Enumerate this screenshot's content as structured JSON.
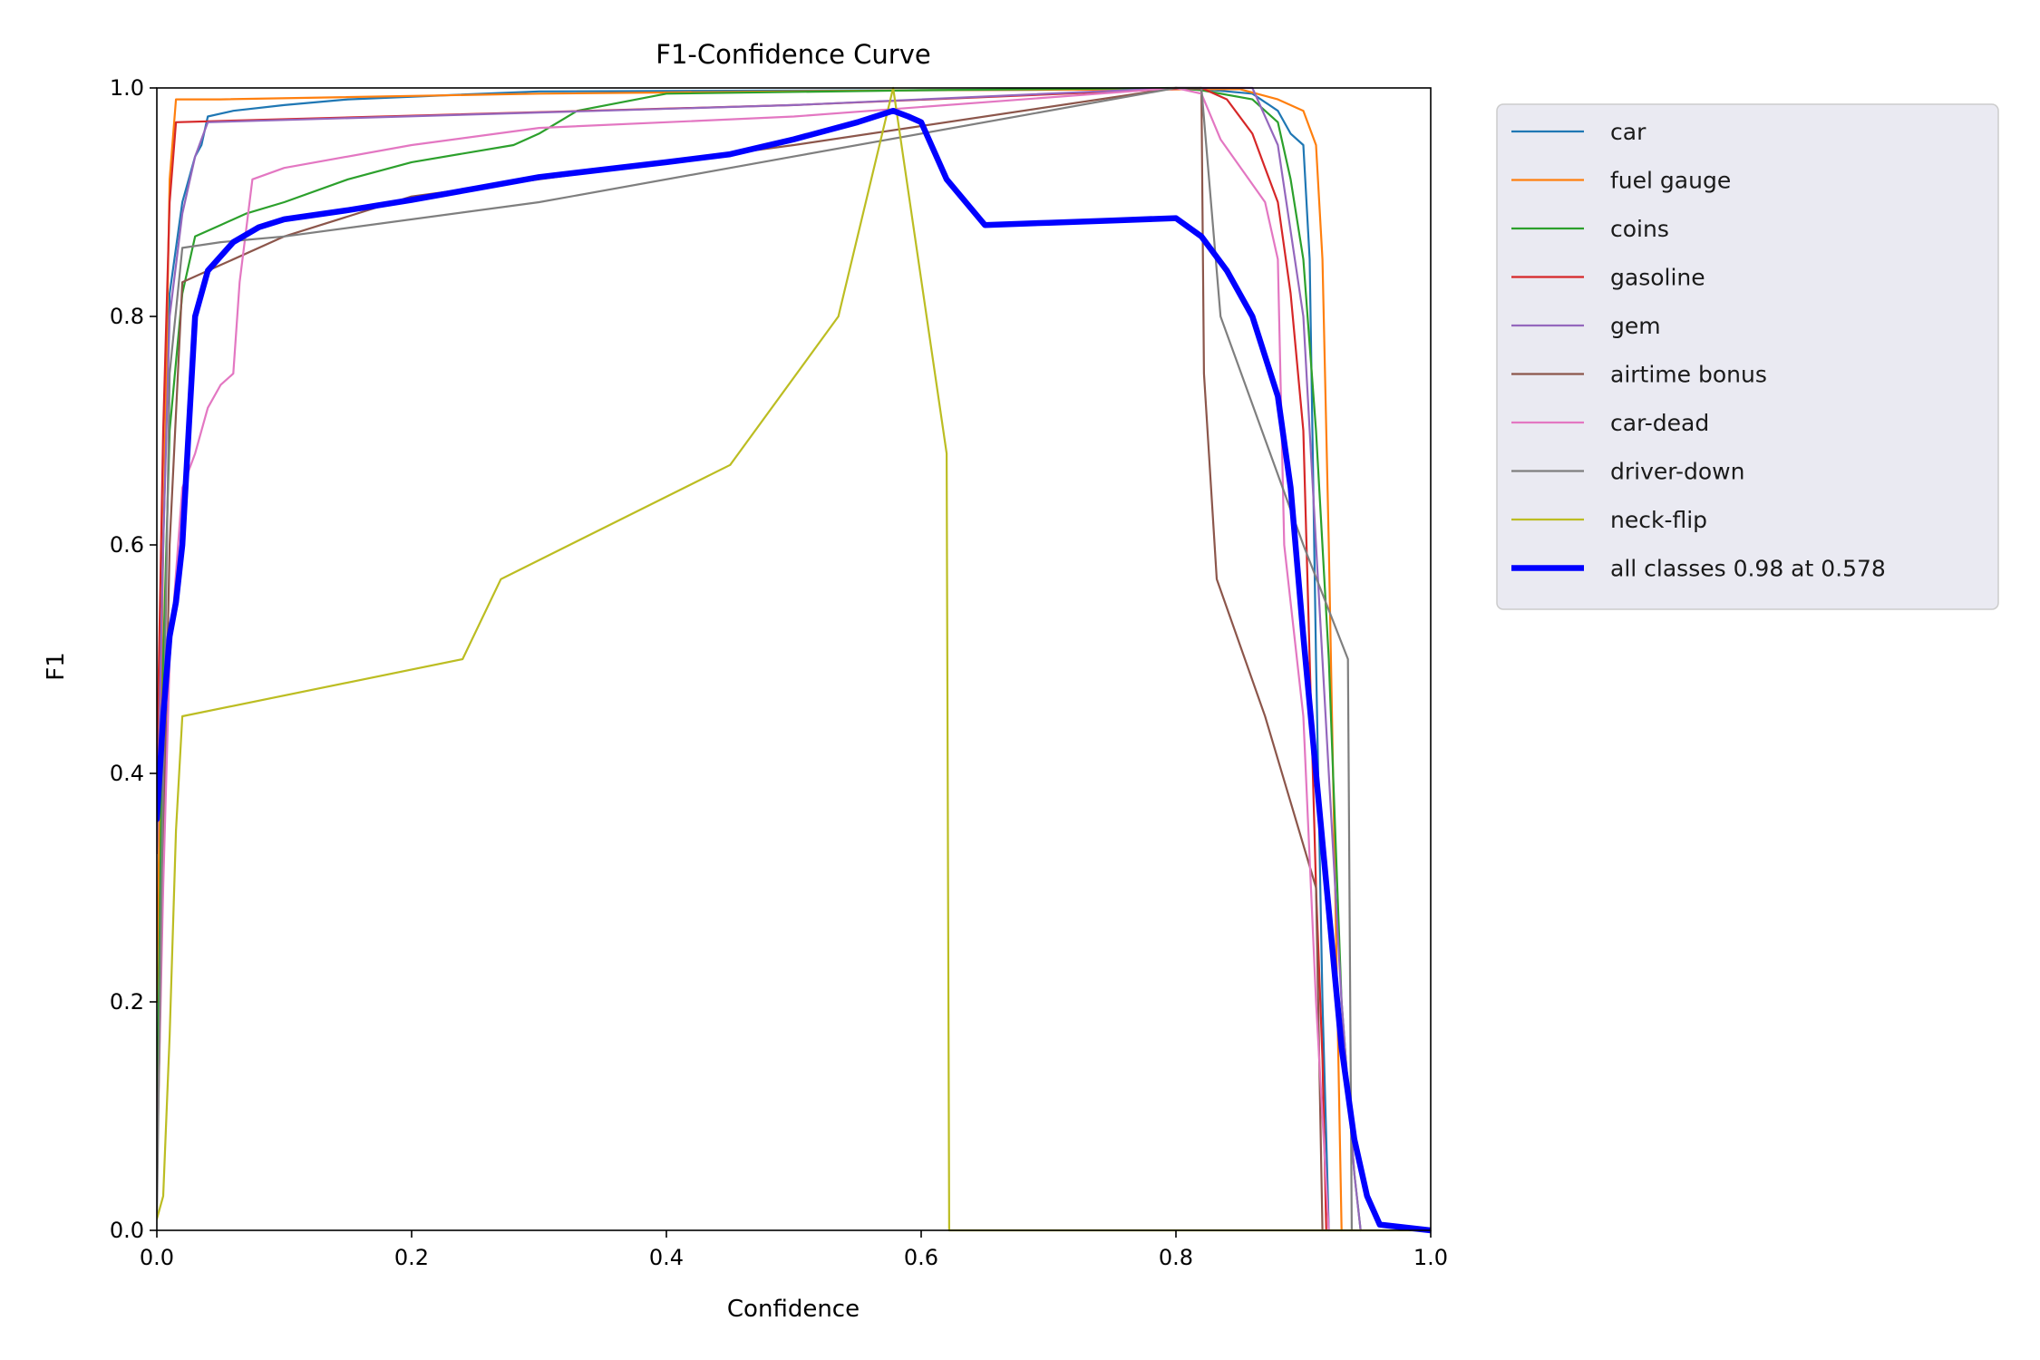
{
  "chart_data": {
    "type": "line",
    "title": "F1-Confidence Curve",
    "xlabel": "Confidence",
    "ylabel": "F1",
    "xlim": [
      0,
      1
    ],
    "ylim": [
      0,
      1
    ],
    "xticks": [
      "0.0",
      "0.2",
      "0.4",
      "0.6",
      "0.8",
      "1.0"
    ],
    "yticks": [
      "0.0",
      "0.2",
      "0.4",
      "0.6",
      "0.8",
      "1.0"
    ],
    "grid": false,
    "legend_position": "outside-right-top",
    "series": [
      {
        "name": "car",
        "color": "#1f77b4",
        "bold": false,
        "points": [
          [
            0,
            0.33
          ],
          [
            0.005,
            0.6
          ],
          [
            0.01,
            0.82
          ],
          [
            0.02,
            0.9
          ],
          [
            0.03,
            0.94
          ],
          [
            0.035,
            0.95
          ],
          [
            0.04,
            0.975
          ],
          [
            0.06,
            0.98
          ],
          [
            0.1,
            0.985
          ],
          [
            0.15,
            0.99
          ],
          [
            0.3,
            0.997
          ],
          [
            0.6,
            0.998
          ],
          [
            0.82,
            0.999
          ],
          [
            0.86,
            0.995
          ],
          [
            0.88,
            0.98
          ],
          [
            0.89,
            0.96
          ],
          [
            0.9,
            0.95
          ],
          [
            0.905,
            0.85
          ],
          [
            0.91,
            0.5
          ],
          [
            0.915,
            0.2
          ],
          [
            0.92,
            0
          ]
        ]
      },
      {
        "name": "fuel gauge",
        "color": "#ff7f0e",
        "bold": false,
        "points": [
          [
            0,
            0.2
          ],
          [
            0.005,
            0.6
          ],
          [
            0.01,
            0.92
          ],
          [
            0.015,
            0.99
          ],
          [
            0.05,
            0.99
          ],
          [
            0.3,
            0.995
          ],
          [
            0.6,
            0.998
          ],
          [
            0.85,
            0.999
          ],
          [
            0.88,
            0.99
          ],
          [
            0.9,
            0.98
          ],
          [
            0.91,
            0.95
          ],
          [
            0.915,
            0.85
          ],
          [
            0.92,
            0.6
          ],
          [
            0.925,
            0.3
          ],
          [
            0.93,
            0
          ]
        ]
      },
      {
        "name": "coins",
        "color": "#2ca02c",
        "bold": false,
        "points": [
          [
            0,
            0.07
          ],
          [
            0.005,
            0.5
          ],
          [
            0.01,
            0.7
          ],
          [
            0.02,
            0.82
          ],
          [
            0.03,
            0.87
          ],
          [
            0.05,
            0.88
          ],
          [
            0.07,
            0.89
          ],
          [
            0.1,
            0.9
          ],
          [
            0.15,
            0.92
          ],
          [
            0.2,
            0.935
          ],
          [
            0.28,
            0.95
          ],
          [
            0.3,
            0.96
          ],
          [
            0.33,
            0.98
          ],
          [
            0.4,
            0.995
          ],
          [
            0.6,
            0.998
          ],
          [
            0.8,
            1.0
          ],
          [
            0.82,
            0.998
          ],
          [
            0.86,
            0.99
          ],
          [
            0.88,
            0.97
          ],
          [
            0.89,
            0.92
          ],
          [
            0.9,
            0.85
          ],
          [
            0.91,
            0.7
          ],
          [
            0.92,
            0.5
          ],
          [
            0.93,
            0.2
          ],
          [
            0.94,
            0.05
          ],
          [
            0.945,
            0
          ]
        ]
      },
      {
        "name": "gasoline",
        "color": "#d62728",
        "bold": false,
        "points": [
          [
            0,
            0.4
          ],
          [
            0.005,
            0.7
          ],
          [
            0.01,
            0.9
          ],
          [
            0.015,
            0.97
          ],
          [
            0.5,
            0.985
          ],
          [
            0.82,
            1.0
          ],
          [
            0.84,
            0.99
          ],
          [
            0.86,
            0.96
          ],
          [
            0.87,
            0.93
          ],
          [
            0.88,
            0.9
          ],
          [
            0.89,
            0.82
          ],
          [
            0.9,
            0.7
          ],
          [
            0.905,
            0.5
          ],
          [
            0.91,
            0.3
          ],
          [
            0.915,
            0.15
          ],
          [
            0.918,
            0
          ]
        ]
      },
      {
        "name": "gem",
        "color": "#9467bd",
        "bold": false,
        "points": [
          [
            0,
            0.33
          ],
          [
            0.005,
            0.6
          ],
          [
            0.01,
            0.8
          ],
          [
            0.02,
            0.89
          ],
          [
            0.03,
            0.94
          ],
          [
            0.04,
            0.97
          ],
          [
            0.5,
            0.985
          ],
          [
            0.8,
            1.0
          ],
          [
            0.86,
            1.0
          ],
          [
            0.88,
            0.95
          ],
          [
            0.9,
            0.8
          ],
          [
            0.91,
            0.6
          ],
          [
            0.92,
            0.4
          ],
          [
            0.93,
            0.2
          ],
          [
            0.94,
            0.05
          ],
          [
            0.945,
            0
          ]
        ]
      },
      {
        "name": "airtime bonus",
        "color": "#8c564b",
        "bold": false,
        "points": [
          [
            0,
            0.05
          ],
          [
            0.01,
            0.6
          ],
          [
            0.02,
            0.83
          ],
          [
            0.05,
            0.845
          ],
          [
            0.1,
            0.87
          ],
          [
            0.2,
            0.905
          ],
          [
            0.3,
            0.92
          ],
          [
            0.5,
            0.95
          ],
          [
            0.8,
            1.0
          ],
          [
            0.82,
            0.999
          ],
          [
            0.822,
            0.75
          ],
          [
            0.832,
            0.57
          ],
          [
            0.87,
            0.45
          ],
          [
            0.91,
            0.3
          ],
          [
            0.915,
            0
          ]
        ]
      },
      {
        "name": "car-dead",
        "color": "#e377c2",
        "bold": false,
        "points": [
          [
            0,
            0.05
          ],
          [
            0.005,
            0.3
          ],
          [
            0.01,
            0.5
          ],
          [
            0.02,
            0.65
          ],
          [
            0.03,
            0.68
          ],
          [
            0.04,
            0.72
          ],
          [
            0.05,
            0.74
          ],
          [
            0.06,
            0.75
          ],
          [
            0.065,
            0.83
          ],
          [
            0.075,
            0.92
          ],
          [
            0.1,
            0.93
          ],
          [
            0.2,
            0.95
          ],
          [
            0.3,
            0.965
          ],
          [
            0.5,
            0.975
          ],
          [
            0.8,
            1.0
          ],
          [
            0.82,
            0.995
          ],
          [
            0.835,
            0.955
          ],
          [
            0.87,
            0.9
          ],
          [
            0.88,
            0.85
          ],
          [
            0.885,
            0.6
          ],
          [
            0.9,
            0.45
          ],
          [
            0.91,
            0.2
          ],
          [
            0.92,
            0
          ]
        ]
      },
      {
        "name": "driver-down",
        "color": "#7f7f7f",
        "bold": false,
        "points": [
          [
            0,
            0.01
          ],
          [
            0.005,
            0.4
          ],
          [
            0.01,
            0.75
          ],
          [
            0.02,
            0.86
          ],
          [
            0.05,
            0.865
          ],
          [
            0.1,
            0.87
          ],
          [
            0.3,
            0.9
          ],
          [
            0.5,
            0.94
          ],
          [
            0.8,
            1.0
          ],
          [
            0.82,
            1.0
          ],
          [
            0.835,
            0.8
          ],
          [
            0.9,
            0.6
          ],
          [
            0.935,
            0.5
          ],
          [
            0.938,
            0
          ]
        ]
      },
      {
        "name": "neck-flip",
        "color": "#bcbd22",
        "bold": false,
        "points": [
          [
            0,
            0.01
          ],
          [
            0.005,
            0.03
          ],
          [
            0.01,
            0.17
          ],
          [
            0.015,
            0.35
          ],
          [
            0.02,
            0.45
          ],
          [
            0.24,
            0.5
          ],
          [
            0.27,
            0.57
          ],
          [
            0.45,
            0.67
          ],
          [
            0.535,
            0.8
          ],
          [
            0.578,
            1.0
          ],
          [
            0.62,
            0.68
          ],
          [
            0.622,
            0
          ],
          [
            1.0,
            0
          ]
        ]
      },
      {
        "name": "all classes 0.98 at 0.578",
        "color": "#0000ff",
        "bold": true,
        "points": [
          [
            0,
            0.36
          ],
          [
            0.005,
            0.45
          ],
          [
            0.01,
            0.52
          ],
          [
            0.015,
            0.55
          ],
          [
            0.02,
            0.6
          ],
          [
            0.025,
            0.7
          ],
          [
            0.03,
            0.8
          ],
          [
            0.04,
            0.84
          ],
          [
            0.06,
            0.865
          ],
          [
            0.08,
            0.878
          ],
          [
            0.1,
            0.885
          ],
          [
            0.15,
            0.893
          ],
          [
            0.2,
            0.902
          ],
          [
            0.25,
            0.912
          ],
          [
            0.3,
            0.922
          ],
          [
            0.4,
            0.935
          ],
          [
            0.45,
            0.942
          ],
          [
            0.5,
            0.955
          ],
          [
            0.55,
            0.97
          ],
          [
            0.578,
            0.98
          ],
          [
            0.59,
            0.975
          ],
          [
            0.6,
            0.97
          ],
          [
            0.62,
            0.92
          ],
          [
            0.65,
            0.88
          ],
          [
            0.7,
            0.882
          ],
          [
            0.75,
            0.884
          ],
          [
            0.8,
            0.886
          ],
          [
            0.82,
            0.87
          ],
          [
            0.84,
            0.84
          ],
          [
            0.86,
            0.8
          ],
          [
            0.88,
            0.73
          ],
          [
            0.89,
            0.65
          ],
          [
            0.9,
            0.52
          ],
          [
            0.91,
            0.4
          ],
          [
            0.92,
            0.28
          ],
          [
            0.93,
            0.16
          ],
          [
            0.94,
            0.08
          ],
          [
            0.95,
            0.03
          ],
          [
            0.96,
            0.005
          ],
          [
            1.0,
            0
          ]
        ]
      }
    ]
  }
}
